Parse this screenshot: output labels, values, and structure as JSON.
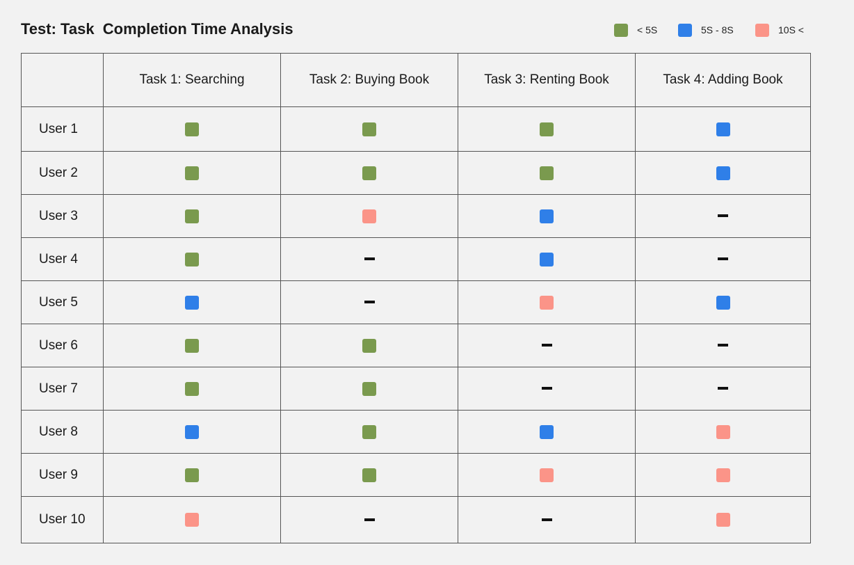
{
  "title": "Test: Task  Completion Time Analysis",
  "legend": [
    {
      "key": "fast",
      "label": "< 5S",
      "color": "#7a9a4e"
    },
    {
      "key": "mid",
      "label": "5S - 8S",
      "color": "#2f7fe8"
    },
    {
      "key": "slow",
      "label": "10S <",
      "color": "#fb9488"
    }
  ],
  "chart_data": {
    "type": "table",
    "title": "Test: Task  Completion Time Analysis",
    "columns": [
      "Task 1: Searching",
      "Task 2: Buying Book",
      "Task 3: Renting Book",
      "Task 4: Adding Book"
    ],
    "rows": [
      {
        "label": "User 1",
        "values": [
          "< 5S",
          "< 5S",
          "< 5S",
          "5S - 8S"
        ]
      },
      {
        "label": "User 2",
        "values": [
          "< 5S",
          "< 5S",
          "< 5S",
          "5S - 8S"
        ]
      },
      {
        "label": "User 3",
        "values": [
          "< 5S",
          "10S <",
          "5S - 8S",
          "-"
        ]
      },
      {
        "label": "User 4",
        "values": [
          "< 5S",
          "-",
          "5S - 8S",
          "-"
        ]
      },
      {
        "label": "User 5",
        "values": [
          "5S - 8S",
          "-",
          "10S <",
          "5S - 8S"
        ]
      },
      {
        "label": "User 6",
        "values": [
          "< 5S",
          "< 5S",
          "-",
          "-"
        ]
      },
      {
        "label": "User 7",
        "values": [
          "< 5S",
          "< 5S",
          "-",
          "-"
        ]
      },
      {
        "label": "User 8",
        "values": [
          "5S - 8S",
          "< 5S",
          "5S - 8S",
          "10S <"
        ]
      },
      {
        "label": "User 9",
        "values": [
          "< 5S",
          "< 5S",
          "10S <",
          "10S <"
        ]
      },
      {
        "label": "User 10",
        "values": [
          "10S <",
          "-",
          "-",
          "10S <"
        ]
      }
    ]
  }
}
